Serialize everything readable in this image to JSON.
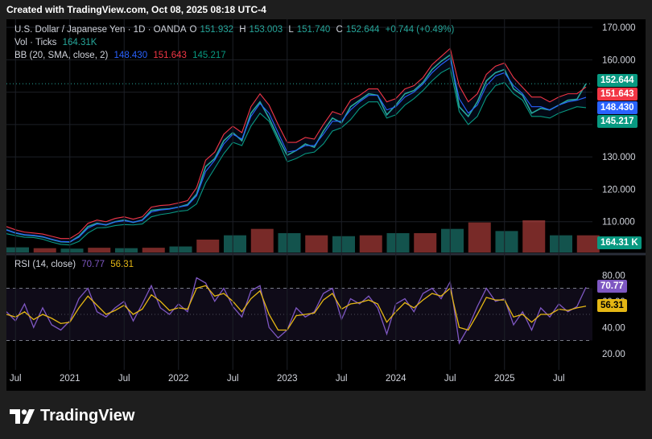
{
  "header": {
    "created_with": "Created with TradingView.com, Oct 08, 2025 08:18 UTC-4"
  },
  "legend": {
    "symbol": "U.S. Dollar / Japanese Yen · 1D · OANDA",
    "o_label": "O",
    "o_value": "151.932",
    "h_label": "H",
    "h_value": "153.003",
    "l_label": "L",
    "l_value": "151.740",
    "c_label": "C",
    "c_value": "152.644",
    "change": "+0.744 (+0.49%)",
    "vol_label": "Vol · Ticks",
    "vol_value": "164.31K",
    "bb_label": "BB (20, SMA, close, 2)",
    "bb_basis": "148.430",
    "bb_upper": "151.643",
    "bb_lower": "145.217",
    "rsi_label": "RSI (14, close)",
    "rsi_value": "70.77",
    "rsi_ma": "56.31"
  },
  "price_tags": {
    "last": "152.644",
    "upper": "151.643",
    "basis": "148.430",
    "lower": "145.217",
    "volume": "164.31 K",
    "rsi": "70.77",
    "rsi_ma": "56.31"
  },
  "colors": {
    "up": "#26a69a",
    "down": "#ef5350",
    "bb_upper": "#f23645",
    "bb_basis": "#2962ff",
    "bb_lower": "#089981",
    "rsi": "#7e57c2",
    "rsi_ma": "#e5b714",
    "background": "#000000"
  },
  "brand": {
    "name": "TradingView",
    "logo_icon": "tradingview-logo-icon"
  },
  "chart_data": [
    {
      "type": "line",
      "title": "U.S. Dollar / Japanese Yen · 1D · OANDA",
      "x": [
        "2020-06",
        "2020-07",
        "2020-08",
        "2020-09",
        "2020-10",
        "2020-11",
        "2020-12",
        "2021-01",
        "2021-02",
        "2021-03",
        "2021-04",
        "2021-05",
        "2021-06",
        "2021-07",
        "2021-08",
        "2021-09",
        "2021-10",
        "2021-11",
        "2021-12",
        "2022-01",
        "2022-02",
        "2022-03",
        "2022-04",
        "2022-05",
        "2022-06",
        "2022-07",
        "2022-08",
        "2022-09",
        "2022-10",
        "2022-11",
        "2022-12",
        "2023-01",
        "2023-02",
        "2023-03",
        "2023-04",
        "2023-05",
        "2023-06",
        "2023-07",
        "2023-08",
        "2023-09",
        "2023-10",
        "2023-11",
        "2023-12",
        "2024-01",
        "2024-02",
        "2024-03",
        "2024-04",
        "2024-05",
        "2024-06",
        "2024-07",
        "2024-08",
        "2024-09",
        "2024-10",
        "2024-11",
        "2024-12",
        "2025-01",
        "2025-02",
        "2025-03",
        "2025-04",
        "2025-05",
        "2025-06",
        "2025-07",
        "2025-08",
        "2025-09",
        "2025-10"
      ],
      "series": [
        {
          "name": "close",
          "values": [
            107.5,
            106.5,
            105.9,
            105.7,
            105.3,
            104.5,
            103.8,
            103.7,
            105.5,
            108.5,
            109.5,
            109.0,
            110.0,
            110.5,
            109.8,
            110.5,
            113.5,
            113.8,
            114.0,
            114.5,
            115.3,
            118.5,
            127.0,
            129.5,
            135.0,
            137.5,
            135.0,
            143.5,
            147.0,
            142.0,
            136.0,
            130.5,
            132.0,
            134.0,
            133.0,
            138.0,
            142.0,
            140.5,
            145.5,
            147.5,
            149.5,
            149.0,
            143.0,
            146.0,
            149.5,
            150.5,
            153.0,
            157.0,
            159.5,
            161.5,
            145.5,
            142.5,
            147.0,
            153.5,
            156.0,
            157.0,
            151.0,
            149.0,
            143.5,
            145.0,
            144.5,
            146.0,
            147.5,
            147.8,
            152.6
          ]
        },
        {
          "name": "BB upper",
          "values": [
            108.5,
            107.5,
            106.8,
            106.5,
            106.2,
            105.5,
            104.8,
            104.8,
            106.5,
            109.5,
            110.5,
            110.0,
            111.0,
            111.5,
            110.8,
            111.5,
            114.5,
            115.0,
            115.2,
            115.8,
            116.5,
            120.5,
            129.0,
            131.5,
            137.0,
            139.5,
            137.5,
            145.5,
            149.5,
            146.0,
            140.0,
            134.5,
            134.5,
            136.0,
            135.5,
            140.0,
            144.0,
            143.0,
            147.5,
            149.0,
            151.0,
            151.0,
            147.0,
            148.0,
            151.0,
            152.0,
            154.5,
            158.5,
            161.0,
            163.5,
            152.0,
            147.0,
            149.5,
            155.5,
            158.0,
            159.0,
            154.5,
            151.5,
            148.5,
            148.5,
            147.0,
            148.5,
            149.5,
            149.5,
            151.6
          ]
        },
        {
          "name": "BB basis",
          "values": [
            107.4,
            106.6,
            106.0,
            105.8,
            105.4,
            104.6,
            103.9,
            103.8,
            105.2,
            108.0,
            109.3,
            109.1,
            109.9,
            110.3,
            109.9,
            110.4,
            113.0,
            113.6,
            113.9,
            114.5,
            115.0,
            118.0,
            125.5,
            129.0,
            134.0,
            137.0,
            135.5,
            142.5,
            146.5,
            143.5,
            137.5,
            131.5,
            132.0,
            133.5,
            133.5,
            137.0,
            141.0,
            141.0,
            144.5,
            147.0,
            149.0,
            149.0,
            144.5,
            145.5,
            148.5,
            150.0,
            152.5,
            156.0,
            158.5,
            160.5,
            148.0,
            143.5,
            146.0,
            152.0,
            155.0,
            156.0,
            152.0,
            149.5,
            145.5,
            145.5,
            144.5,
            146.0,
            147.0,
            147.5,
            148.4
          ]
        },
        {
          "name": "BB lower",
          "values": [
            106.3,
            105.7,
            105.2,
            105.1,
            104.6,
            103.7,
            103.0,
            102.8,
            103.9,
            106.5,
            108.1,
            108.2,
            108.8,
            109.1,
            109.0,
            109.3,
            111.5,
            112.2,
            112.6,
            113.2,
            113.5,
            115.5,
            122.0,
            126.5,
            131.0,
            134.5,
            133.5,
            139.5,
            143.5,
            141.0,
            135.0,
            128.5,
            129.5,
            131.0,
            131.5,
            134.0,
            138.0,
            139.0,
            141.5,
            145.0,
            147.0,
            147.0,
            142.0,
            143.0,
            146.0,
            148.0,
            150.5,
            153.5,
            156.0,
            157.5,
            144.0,
            140.0,
            142.5,
            148.5,
            152.0,
            153.0,
            149.5,
            147.5,
            142.5,
            142.5,
            142.0,
            143.5,
            144.5,
            145.5,
            145.2
          ]
        }
      ],
      "ylabel": "",
      "yticks": [
        "110.000",
        "120.000",
        "130.000",
        "140.000",
        "150.000",
        "160.000",
        "170.000"
      ],
      "ylim": [
        100.5,
        171.5
      ],
      "xticks": [
        "Jul",
        "2021",
        "Jul",
        "2022",
        "Jul",
        "2023",
        "Jul",
        "2024",
        "Jul",
        "2025",
        "Jul"
      ],
      "grid": true
    },
    {
      "type": "bar",
      "title": "Vol · Ticks",
      "x": [
        "2020-06",
        "2020-09",
        "2020-12",
        "2021-03",
        "2021-06",
        "2021-09",
        "2021-12",
        "2022-03",
        "2022-06",
        "2022-09",
        "2022-12",
        "2023-03",
        "2023-06",
        "2023-09",
        "2023-12",
        "2024-03",
        "2024-06",
        "2024-09",
        "2024-12",
        "2025-03",
        "2025-06",
        "2025-09"
      ],
      "values": [
        12,
        10,
        9,
        11,
        10,
        11,
        14,
        30,
        40,
        55,
        45,
        40,
        38,
        40,
        45,
        45,
        55,
        70,
        50,
        75,
        40,
        40
      ],
      "unit": "K"
    },
    {
      "type": "line",
      "title": "RSI (14, close)",
      "x": [
        "2020-06",
        "2020-07",
        "2020-08",
        "2020-09",
        "2020-10",
        "2020-11",
        "2020-12",
        "2021-01",
        "2021-02",
        "2021-03",
        "2021-04",
        "2021-05",
        "2021-06",
        "2021-07",
        "2021-08",
        "2021-09",
        "2021-10",
        "2021-11",
        "2021-12",
        "2022-01",
        "2022-02",
        "2022-03",
        "2022-04",
        "2022-05",
        "2022-06",
        "2022-07",
        "2022-08",
        "2022-09",
        "2022-10",
        "2022-11",
        "2022-12",
        "2023-01",
        "2023-02",
        "2023-03",
        "2023-04",
        "2023-05",
        "2023-06",
        "2023-07",
        "2023-08",
        "2023-09",
        "2023-10",
        "2023-11",
        "2023-12",
        "2024-01",
        "2024-02",
        "2024-03",
        "2024-04",
        "2024-05",
        "2024-06",
        "2024-07",
        "2024-08",
        "2024-09",
        "2024-10",
        "2024-11",
        "2024-12",
        "2025-01",
        "2025-02",
        "2025-03",
        "2025-04",
        "2025-05",
        "2025-06",
        "2025-07",
        "2025-08",
        "2025-09",
        "2025-10"
      ],
      "series": [
        {
          "name": "RSI",
          "values": [
            52,
            45,
            58,
            40,
            55,
            42,
            38,
            45,
            62,
            70,
            52,
            48,
            55,
            60,
            45,
            58,
            72,
            55,
            50,
            58,
            52,
            78,
            74,
            60,
            70,
            56,
            48,
            68,
            72,
            40,
            32,
            38,
            55,
            48,
            52,
            66,
            70,
            46,
            62,
            58,
            64,
            55,
            35,
            58,
            62,
            52,
            66,
            70,
            62,
            75,
            28,
            40,
            56,
            70,
            60,
            62,
            42,
            52,
            38,
            55,
            48,
            58,
            52,
            56,
            70.77
          ]
        },
        {
          "name": "RSI-based MA",
          "values": [
            50,
            48,
            52,
            46,
            50,
            47,
            43,
            44,
            55,
            64,
            57,
            50,
            53,
            57,
            50,
            54,
            65,
            60,
            53,
            55,
            54,
            70,
            72,
            64,
            66,
            60,
            52,
            62,
            68,
            50,
            38,
            38,
            49,
            50,
            51,
            61,
            66,
            54,
            58,
            59,
            61,
            58,
            44,
            52,
            59,
            55,
            61,
            66,
            64,
            70,
            40,
            38,
            50,
            63,
            61,
            61,
            48,
            50,
            44,
            50,
            50,
            54,
            53,
            55,
            56.31
          ]
        }
      ],
      "yticks": [
        "20.00",
        "40.00",
        "60.00",
        "80.00"
      ],
      "ylim": [
        10,
        90
      ],
      "bands": [
        30,
        70
      ]
    }
  ]
}
